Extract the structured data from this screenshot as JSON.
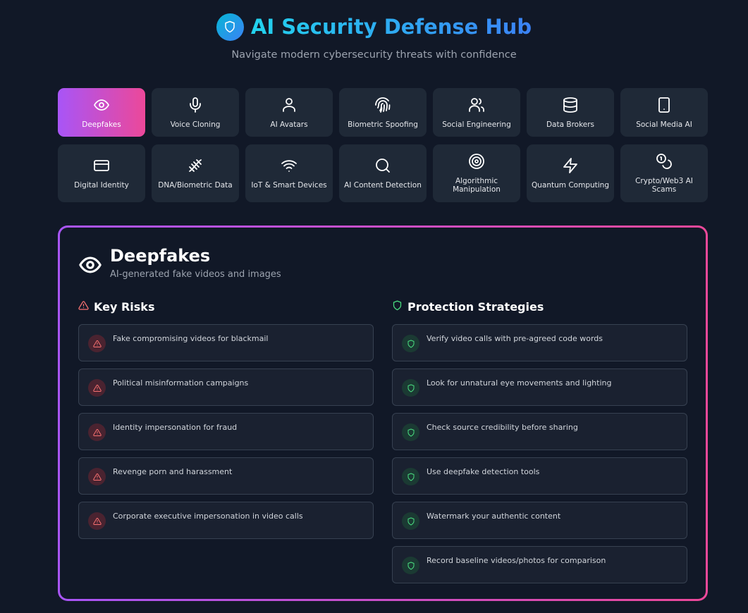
{
  "header": {
    "title": "AI Security Defense Hub",
    "subtitle": "Navigate modern cybersecurity threats with confidence",
    "logo_icon": "shield-icon"
  },
  "colors": {
    "accent_from": "#a855f7",
    "accent_to": "#ec4899",
    "risk": "#f87171",
    "protect": "#4ade80"
  },
  "topics": [
    {
      "label": "Deepfakes",
      "icon": "eye",
      "active": true
    },
    {
      "label": "Voice Cloning",
      "icon": "mic"
    },
    {
      "label": "AI Avatars",
      "icon": "user"
    },
    {
      "label": "Biometric Spoofing",
      "icon": "fingerprint"
    },
    {
      "label": "Social Engineering",
      "icon": "users"
    },
    {
      "label": "Data Brokers",
      "icon": "database"
    },
    {
      "label": "Social Media AI",
      "icon": "smartphone"
    },
    {
      "label": "Digital Identity",
      "icon": "credit-card"
    },
    {
      "label": "DNA/Biometric Data",
      "icon": "dna"
    },
    {
      "label": "IoT & Smart Devices",
      "icon": "wifi"
    },
    {
      "label": "AI Content Detection",
      "icon": "search"
    },
    {
      "label": "Algorithmic Manipulation",
      "icon": "target"
    },
    {
      "label": "Quantum Computing",
      "icon": "zap"
    },
    {
      "label": "Crypto/Web3 AI Scams",
      "icon": "coins"
    }
  ],
  "detail": {
    "title": "Deepfakes",
    "subtitle": "AI-generated fake videos and images",
    "icon": "eye",
    "risks_heading": "Key Risks",
    "risks": [
      "Fake compromising videos for blackmail",
      "Political misinformation campaigns",
      "Identity impersonation for fraud",
      "Revenge porn and harassment",
      "Corporate executive impersonation in video calls"
    ],
    "protection_heading": "Protection Strategies",
    "protections": [
      "Verify video calls with pre-agreed code words",
      "Look for unnatural eye movements and lighting",
      "Check source credibility before sharing",
      "Use deepfake detection tools",
      "Watermark your authentic content",
      "Record baseline videos/photos for comparison"
    ]
  }
}
